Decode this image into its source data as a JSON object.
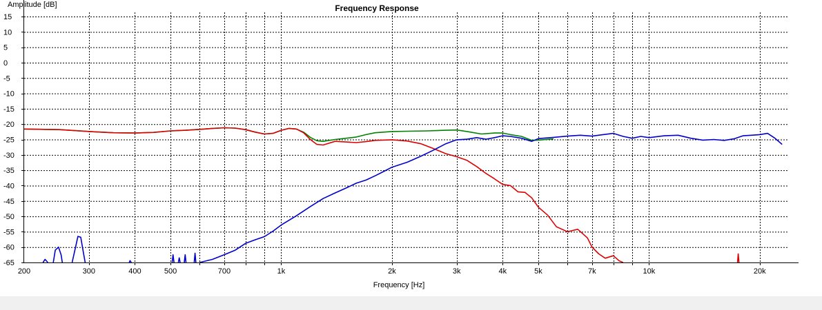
{
  "chart_data": {
    "type": "line",
    "title": "Frequency Response",
    "xlabel": "Frequency [Hz]",
    "ylabel": "Amplitude [dB]",
    "x_scale": "log",
    "xlim": [
      200,
      24000
    ],
    "ylim": [
      -65,
      15
    ],
    "grid": true,
    "x_ticks": [
      200,
      300,
      400,
      500,
      700,
      1000,
      2000,
      3000,
      4000,
      5000,
      7000,
      10000,
      20000
    ],
    "x_tick_labels": [
      "200",
      "300",
      "400",
      "500",
      "700",
      "1k",
      "2k",
      "3k",
      "4k",
      "5k",
      "7k",
      "10k",
      "20k"
    ],
    "y_ticks": [
      15,
      10,
      5,
      0,
      -5,
      -10,
      -15,
      -20,
      -25,
      -30,
      -35,
      -40,
      -45,
      -50,
      -55,
      -60,
      -65
    ],
    "y_tick_labels": [
      "15",
      "10",
      "5",
      "0",
      "-5",
      "-10",
      "-15",
      "-20",
      "-25",
      "-30",
      "-35",
      "-40",
      "-45",
      "-50",
      "-55",
      "-60",
      "-65"
    ],
    "series": [
      {
        "color": "#008000",
        "points": [
          [
            200,
            -21.6
          ],
          [
            250,
            -21.8
          ],
          [
            300,
            -22.4
          ],
          [
            350,
            -22.8
          ],
          [
            400,
            -22.9
          ],
          [
            450,
            -22.7
          ],
          [
            500,
            -22.2
          ],
          [
            550,
            -22.0
          ],
          [
            600,
            -21.7
          ],
          [
            650,
            -21.4
          ],
          [
            700,
            -21.2
          ],
          [
            750,
            -21.3
          ],
          [
            800,
            -21.8
          ],
          [
            850,
            -22.6
          ],
          [
            900,
            -23.2
          ],
          [
            950,
            -23.0
          ],
          [
            1000,
            -22.0
          ],
          [
            1050,
            -21.4
          ],
          [
            1100,
            -21.6
          ],
          [
            1150,
            -22.6
          ],
          [
            1200,
            -24.3
          ],
          [
            1250,
            -25.4
          ],
          [
            1300,
            -25.6
          ],
          [
            1400,
            -25.0
          ],
          [
            1500,
            -24.6
          ],
          [
            1600,
            -24.2
          ],
          [
            1700,
            -23.4
          ],
          [
            1800,
            -22.8
          ],
          [
            2000,
            -22.4
          ],
          [
            2200,
            -22.3
          ],
          [
            2500,
            -22.2
          ],
          [
            2800,
            -22.0
          ],
          [
            3000,
            -21.9
          ],
          [
            3200,
            -22.4
          ],
          [
            3500,
            -23.2
          ],
          [
            3800,
            -22.9
          ],
          [
            4000,
            -22.9
          ],
          [
            4200,
            -23.4
          ],
          [
            4500,
            -24.0
          ],
          [
            4800,
            -25.3
          ],
          [
            5000,
            -25.2
          ],
          [
            5500,
            -24.8
          ]
        ]
      },
      {
        "color": "#dd0000",
        "points": [
          [
            200,
            -21.6
          ],
          [
            250,
            -21.8
          ],
          [
            300,
            -22.4
          ],
          [
            350,
            -22.8
          ],
          [
            400,
            -22.9
          ],
          [
            450,
            -22.7
          ],
          [
            500,
            -22.2
          ],
          [
            550,
            -22.0
          ],
          [
            600,
            -21.7
          ],
          [
            650,
            -21.4
          ],
          [
            700,
            -21.2
          ],
          [
            750,
            -21.3
          ],
          [
            800,
            -21.8
          ],
          [
            850,
            -22.6
          ],
          [
            900,
            -23.2
          ],
          [
            950,
            -23.0
          ],
          [
            1000,
            -22.0
          ],
          [
            1050,
            -21.4
          ],
          [
            1100,
            -21.6
          ],
          [
            1150,
            -22.8
          ],
          [
            1200,
            -25.0
          ],
          [
            1250,
            -26.6
          ],
          [
            1300,
            -26.8
          ],
          [
            1400,
            -25.6
          ],
          [
            1500,
            -25.8
          ],
          [
            1600,
            -26.0
          ],
          [
            1700,
            -25.7
          ],
          [
            1800,
            -25.3
          ],
          [
            2000,
            -25.1
          ],
          [
            2200,
            -25.5
          ],
          [
            2400,
            -26.4
          ],
          [
            2600,
            -28.0
          ],
          [
            2800,
            -29.6
          ],
          [
            3000,
            -30.6
          ],
          [
            3200,
            -31.8
          ],
          [
            3400,
            -33.8
          ],
          [
            3600,
            -36.0
          ],
          [
            3800,
            -37.8
          ],
          [
            4000,
            -39.6
          ],
          [
            4200,
            -40.0
          ],
          [
            4400,
            -42.0
          ],
          [
            4600,
            -42.2
          ],
          [
            4800,
            -44.0
          ],
          [
            5000,
            -47.0
          ],
          [
            5300,
            -49.6
          ],
          [
            5600,
            -53.4
          ],
          [
            6000,
            -55.0
          ],
          [
            6400,
            -54.2
          ],
          [
            6800,
            -57.0
          ],
          [
            7000,
            -60.0
          ],
          [
            7300,
            -62.2
          ],
          [
            7600,
            -63.6
          ],
          [
            8000,
            -62.8
          ],
          [
            8300,
            -64.5
          ],
          [
            8500,
            -65.0
          ]
        ]
      },
      {
        "color": "#0000cc",
        "points": [
          [
            600,
            -65.0
          ],
          [
            650,
            -64.0
          ],
          [
            700,
            -62.5
          ],
          [
            750,
            -61.0
          ],
          [
            800,
            -58.8
          ],
          [
            850,
            -57.6
          ],
          [
            900,
            -56.6
          ],
          [
            950,
            -54.8
          ],
          [
            1000,
            -52.8
          ],
          [
            1100,
            -49.8
          ],
          [
            1200,
            -46.8
          ],
          [
            1300,
            -44.2
          ],
          [
            1400,
            -42.4
          ],
          [
            1500,
            -40.8
          ],
          [
            1600,
            -39.2
          ],
          [
            1700,
            -38.2
          ],
          [
            1800,
            -36.8
          ],
          [
            1900,
            -35.4
          ],
          [
            2000,
            -34.0
          ],
          [
            2200,
            -32.4
          ],
          [
            2400,
            -30.4
          ],
          [
            2600,
            -28.4
          ],
          [
            2800,
            -26.4
          ],
          [
            3000,
            -25.1
          ],
          [
            3200,
            -24.9
          ],
          [
            3400,
            -24.4
          ],
          [
            3600,
            -24.9
          ],
          [
            3800,
            -24.4
          ],
          [
            4000,
            -23.8
          ],
          [
            4200,
            -24.0
          ],
          [
            4500,
            -24.6
          ],
          [
            4800,
            -25.6
          ],
          [
            5000,
            -24.7
          ],
          [
            5500,
            -24.3
          ],
          [
            6000,
            -23.9
          ],
          [
            6500,
            -23.6
          ],
          [
            7000,
            -23.9
          ],
          [
            7500,
            -23.4
          ],
          [
            8000,
            -23.0
          ],
          [
            8500,
            -24.0
          ],
          [
            9000,
            -24.6
          ],
          [
            9500,
            -24.0
          ],
          [
            10000,
            -24.4
          ],
          [
            11000,
            -23.8
          ],
          [
            12000,
            -23.6
          ],
          [
            13000,
            -24.6
          ],
          [
            14000,
            -25.2
          ],
          [
            15000,
            -25.0
          ],
          [
            16000,
            -25.3
          ],
          [
            17000,
            -24.8
          ],
          [
            18000,
            -23.8
          ],
          [
            19000,
            -23.6
          ],
          [
            20000,
            -23.4
          ],
          [
            21000,
            -23.0
          ],
          [
            22000,
            -24.6
          ],
          [
            23000,
            -26.6
          ]
        ]
      },
      {
        "color": "#0000cc",
        "points": [
          [
            225,
            -65.0
          ],
          [
            228,
            -64.0
          ],
          [
            232,
            -65.0
          ]
        ]
      },
      {
        "color": "#0000cc",
        "points": [
          [
            240,
            -65.0
          ],
          [
            243,
            -61.0
          ],
          [
            248,
            -60.0
          ],
          [
            252,
            -62.5
          ],
          [
            254,
            -65.0
          ]
        ]
      },
      {
        "color": "#0000cc",
        "points": [
          [
            270,
            -65.0
          ],
          [
            276,
            -60.0
          ],
          [
            280,
            -56.5
          ],
          [
            285,
            -56.8
          ],
          [
            290,
            -62.0
          ],
          [
            293,
            -65.0
          ]
        ]
      },
      {
        "color": "#0000cc",
        "points": [
          [
            386,
            -65.0
          ],
          [
            388,
            -64.4
          ],
          [
            391,
            -65.0
          ]
        ]
      },
      {
        "color": "#0000cc",
        "points": [
          [
            505,
            -65.0
          ],
          [
            508,
            -62.5
          ],
          [
            511,
            -65.0
          ]
        ]
      },
      {
        "color": "#0000cc",
        "points": [
          [
            525,
            -65.0
          ],
          [
            528,
            -63.5
          ],
          [
            531,
            -65.0
          ]
        ]
      },
      {
        "color": "#0000cc",
        "points": [
          [
            545,
            -65.0
          ],
          [
            548,
            -62.5
          ],
          [
            551,
            -65.0
          ]
        ]
      },
      {
        "color": "#0000cc",
        "points": [
          [
            580,
            -65.0
          ],
          [
            583,
            -62.0
          ],
          [
            586,
            -65.0
          ]
        ]
      },
      {
        "color": "#dd0000",
        "points": [
          [
            17400,
            -65.0
          ],
          [
            17480,
            -62.2
          ],
          [
            17560,
            -65.0
          ]
        ]
      }
    ]
  }
}
